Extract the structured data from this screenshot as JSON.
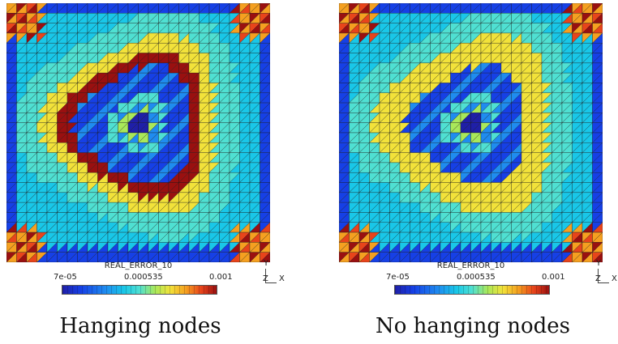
{
  "panels": [
    {
      "field_title": "REAL_ERROR_10",
      "colorbar_min": "7e-05",
      "colorbar_mid": "0.000535",
      "colorbar_max": "0.001",
      "axis_y": "Y",
      "axis_z": "Z",
      "axis_x": "X",
      "caption": "Hanging nodes"
    },
    {
      "field_title": "REAL_ERROR_10",
      "colorbar_min": "7e-05",
      "colorbar_mid": "0.000535",
      "colorbar_max": "0.001",
      "axis_y": "Y",
      "axis_z": "Z",
      "axis_x": "X",
      "caption": "No hanging nodes"
    }
  ],
  "colormap": [
    "#1f1fa8",
    "#1640e6",
    "#1f8cf0",
    "#19c7e8",
    "#4fe0d2",
    "#a9e85a",
    "#f2e23a",
    "#f5a020",
    "#e8441b",
    "#9a1010"
  ]
}
